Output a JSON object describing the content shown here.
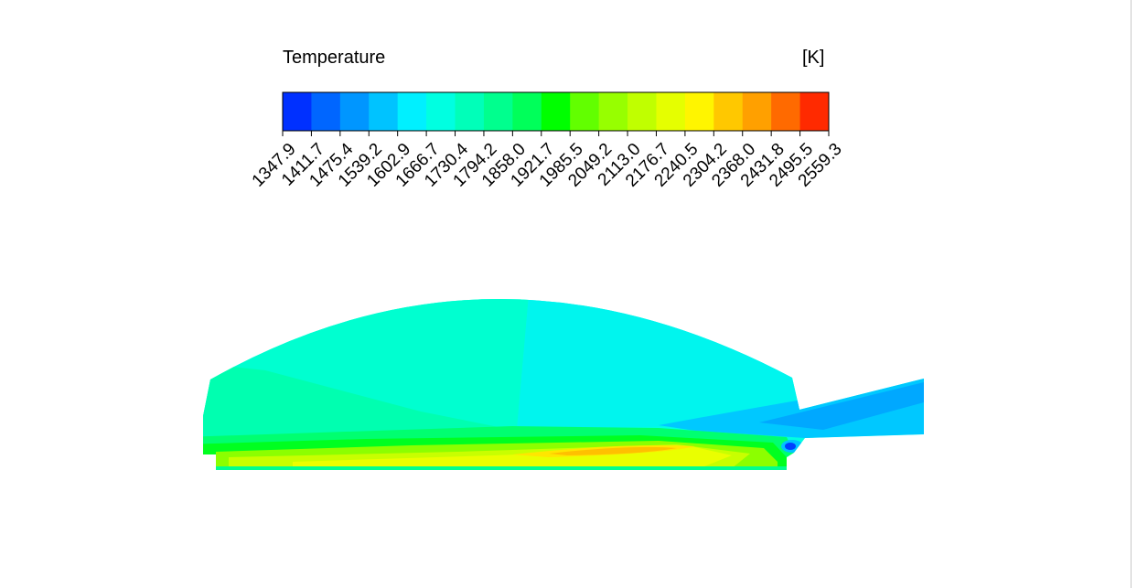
{
  "legend": {
    "title": "Temperature",
    "unit": "[K]",
    "levels": [
      "1347.9",
      "1411.7",
      "1475.4",
      "1539.2",
      "1602.9",
      "1666.7",
      "1730.4",
      "1794.2",
      "1858.0",
      "1921.7",
      "1985.5",
      "2049.2",
      "2113.0",
      "2176.7",
      "2240.5",
      "2304.2",
      "2368.0",
      "2431.8",
      "2495.5",
      "2559.3"
    ],
    "colors": [
      "#0030ff",
      "#0066ff",
      "#0096ff",
      "#00c3ff",
      "#00f0ff",
      "#00ffe1",
      "#00ffb9",
      "#00ff8e",
      "#00ff5a",
      "#00ff00",
      "#62ff00",
      "#97ff00",
      "#c0ff00",
      "#e5ff00",
      "#fff500",
      "#ffc800",
      "#ffa000",
      "#ff6a00",
      "#ff2a00"
    ]
  }
}
